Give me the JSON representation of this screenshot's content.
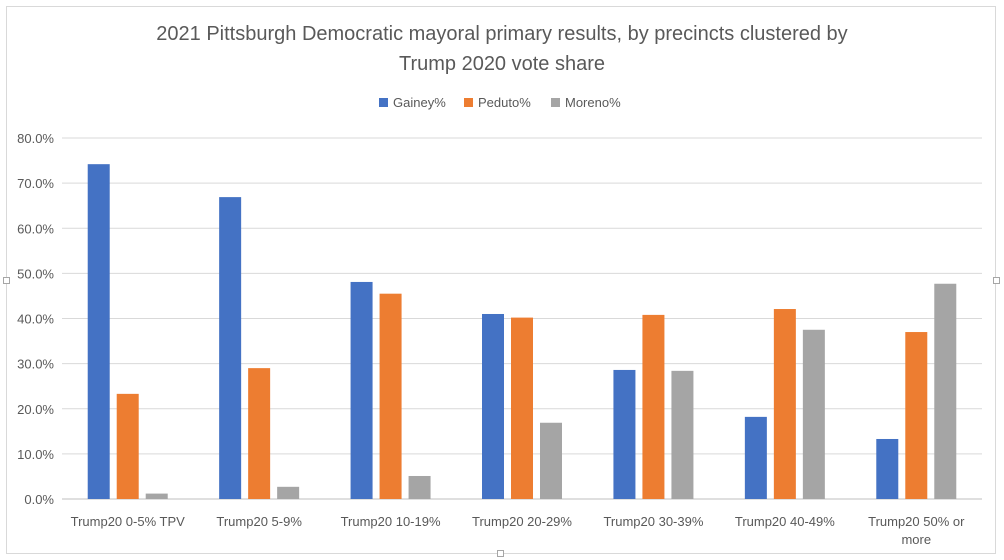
{
  "chart_data": {
    "type": "bar",
    "title": "2021 Pittsburgh Democratic mayoral primary results, by precincts clustered by Trump 2020 vote share",
    "title_lines": [
      "2021 Pittsburgh Democratic mayoral primary results, by precincts clustered by",
      "Trump 2020 vote share"
    ],
    "xlabel": "",
    "ylabel": "",
    "ylim": [
      0,
      80
    ],
    "yticks": [
      "0.0%",
      "10.0%",
      "20.0%",
      "30.0%",
      "40.0%",
      "50.0%",
      "60.0%",
      "70.0%",
      "80.0%"
    ],
    "grid": true,
    "legend_position": "top",
    "categories": [
      [
        "Trump20 0-5% TPV"
      ],
      [
        "Trump20 5-9%"
      ],
      [
        "Trump20 10-19%"
      ],
      [
        "Trump20 20-29%"
      ],
      [
        "Trump20 30-39%"
      ],
      [
        "Trump20 40-49%"
      ],
      [
        "Trump20 50% or",
        "more"
      ]
    ],
    "series": [
      {
        "name": "Gainey%",
        "color": "#4472c4",
        "values": [
          74.2,
          66.9,
          48.1,
          41.0,
          28.6,
          18.2,
          13.3
        ]
      },
      {
        "name": "Peduto%",
        "color": "#ed7d31",
        "values": [
          23.3,
          29.0,
          45.5,
          40.2,
          40.8,
          42.1,
          37.0
        ]
      },
      {
        "name": "Moreno%",
        "color": "#a5a5a5",
        "values": [
          1.2,
          2.7,
          5.1,
          16.9,
          28.4,
          37.5,
          47.7
        ]
      }
    ]
  }
}
